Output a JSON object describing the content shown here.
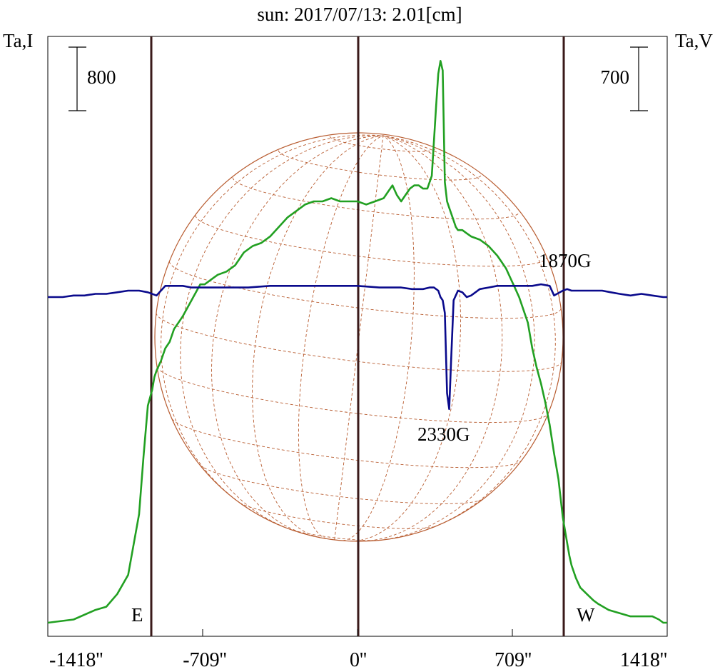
{
  "colors": {
    "background": "#ffffff",
    "title": "#1a1a7a",
    "intensity_curve": "#22a022",
    "polarization_curve": "#0a0a8c",
    "limb_lines": "#3a1a1a",
    "solar_disk": "#b85c30",
    "frame": "#000000"
  },
  "chart_data": {
    "type": "line",
    "title": "sun: 2017/07/13: 2.01[cm]",
    "left_axis_label": "Ta,I",
    "right_axis_label": "Ta,V",
    "scale_bar_left_label": "800",
    "scale_bar_right_label": "700",
    "x_ticks": [
      "-1418''",
      "-709''",
      "0''",
      "709''",
      "1418''"
    ],
    "x_tick_values": [
      -1418,
      -709,
      0,
      709,
      1418
    ],
    "xlim": [
      -1418,
      1418
    ],
    "limb_markers": {
      "east_label": "E",
      "west_label": "W",
      "east_value": -945,
      "center_value": 0,
      "west_value": 945
    },
    "annotations": [
      {
        "text": "1870G",
        "x": 1010,
        "y_series": "V",
        "y": 0.46
      },
      {
        "text": "2330G",
        "x": 410,
        "y_series": "V",
        "y": -0.26
      }
    ],
    "grid": false,
    "series": [
      {
        "key": "I",
        "x": [
          -1418,
          -1300,
          -1200,
          -1150,
          -1100,
          -1050,
          -1000,
          -980,
          -960,
          -940,
          -930,
          -920,
          -900,
          -880,
          -860,
          -840,
          -800,
          -760,
          -720,
          -700,
          -680,
          -660,
          -640,
          -600,
          -560,
          -520,
          -480,
          -440,
          -400,
          -360,
          -320,
          -280,
          -240,
          -200,
          -160,
          -120,
          -80,
          -40,
          0,
          40,
          80,
          120,
          140,
          160,
          180,
          200,
          220,
          240,
          260,
          280,
          300,
          320,
          340,
          360,
          370,
          380,
          390,
          400,
          410,
          420,
          430,
          440,
          450,
          460,
          480,
          500,
          520,
          560,
          600,
          640,
          660,
          680,
          700,
          720,
          740,
          760,
          780,
          800,
          820,
          840,
          860,
          880,
          900,
          920,
          940,
          960,
          970,
          980,
          1000,
          1020,
          1050,
          1080,
          1100,
          1150,
          1200,
          1250,
          1300,
          1350,
          1380,
          1400,
          1418
        ],
        "values": [
          0.0,
          0.01,
          0.04,
          0.05,
          0.09,
          0.15,
          0.34,
          0.52,
          0.68,
          0.73,
          0.77,
          0.79,
          0.82,
          0.86,
          0.88,
          0.92,
          0.96,
          1.01,
          1.06,
          1.06,
          1.07,
          1.08,
          1.09,
          1.1,
          1.12,
          1.16,
          1.18,
          1.19,
          1.21,
          1.24,
          1.27,
          1.29,
          1.31,
          1.32,
          1.32,
          1.33,
          1.32,
          1.32,
          1.32,
          1.31,
          1.32,
          1.33,
          1.35,
          1.37,
          1.34,
          1.32,
          1.34,
          1.36,
          1.37,
          1.37,
          1.36,
          1.36,
          1.4,
          1.62,
          1.72,
          1.76,
          1.73,
          1.38,
          1.32,
          1.3,
          1.28,
          1.26,
          1.24,
          1.23,
          1.23,
          1.22,
          1.21,
          1.2,
          1.18,
          1.15,
          1.13,
          1.11,
          1.08,
          1.05,
          1.02,
          0.98,
          0.94,
          0.86,
          0.8,
          0.75,
          0.69,
          0.62,
          0.53,
          0.45,
          0.33,
          0.25,
          0.21,
          0.18,
          0.14,
          0.11,
          0.09,
          0.07,
          0.06,
          0.04,
          0.03,
          0.02,
          0.02,
          0.02,
          0.01,
          0.0,
          0.0
        ]
      },
      {
        "key": "V",
        "x": [
          -1418,
          -1350,
          -1300,
          -1250,
          -1200,
          -1150,
          -1100,
          -1050,
          -1000,
          -960,
          -920,
          -880,
          -840,
          -800,
          -760,
          -700,
          -600,
          -500,
          -400,
          -300,
          -200,
          -100,
          0,
          100,
          150,
          200,
          250,
          300,
          330,
          350,
          370,
          380,
          390,
          400,
          410,
          420,
          430,
          440,
          460,
          480,
          500,
          520,
          560,
          600,
          640,
          700,
          760,
          800,
          840,
          880,
          900,
          940,
          960,
          980,
          1000,
          1040,
          1080,
          1120,
          1160,
          1200,
          1250,
          1300,
          1350,
          1400,
          1418
        ],
        "values": [
          0.0,
          0.0,
          0.01,
          0.01,
          0.02,
          0.02,
          0.03,
          0.04,
          0.04,
          0.03,
          0.01,
          0.07,
          0.07,
          0.07,
          0.06,
          0.06,
          0.06,
          0.06,
          0.07,
          0.07,
          0.07,
          0.07,
          0.07,
          0.06,
          0.06,
          0.06,
          0.05,
          0.05,
          0.06,
          0.06,
          0.04,
          0.0,
          -0.02,
          -0.1,
          -0.6,
          -0.7,
          -0.35,
          -0.02,
          0.04,
          0.03,
          0.0,
          0.01,
          0.05,
          0.06,
          0.07,
          0.07,
          0.07,
          0.07,
          0.08,
          0.07,
          0.01,
          0.04,
          0.05,
          0.04,
          0.04,
          0.04,
          0.04,
          0.04,
          0.03,
          0.02,
          0.01,
          0.02,
          0.01,
          0.0,
          0.0
        ]
      }
    ]
  }
}
